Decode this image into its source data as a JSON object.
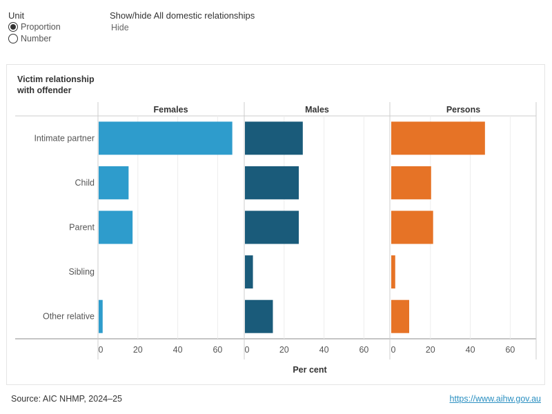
{
  "controls": {
    "unit_title": "Unit",
    "unit_options": [
      "Proportion",
      "Number"
    ],
    "unit_selected": 0,
    "toggle_title": "Show/hide All domestic relationships",
    "toggle_value": "Hide"
  },
  "chart_data": {
    "type": "bar",
    "orientation": "horizontal",
    "row_header": "Victim relationship with offender",
    "categories": [
      "Intimate partner",
      "Child",
      "Parent",
      "Sibling",
      "Other relative"
    ],
    "panels": [
      {
        "name": "Females",
        "color": "#2e9ccc",
        "values": [
          67,
          15,
          17,
          0,
          2
        ]
      },
      {
        "name": "Males",
        "color": "#1a5b7a",
        "values": [
          29,
          27,
          27,
          4,
          14
        ]
      },
      {
        "name": "Persons",
        "color": "#e67326",
        "values": [
          47,
          20,
          21,
          2,
          9
        ]
      }
    ],
    "xlim": [
      0,
      73
    ],
    "xticks": [
      0,
      20,
      40,
      60
    ],
    "xlabel": "Per cent",
    "grid": true
  },
  "footer": {
    "source": "Source: AIC NHMP, 2024–25",
    "link": "https://www.aihw.gov.au"
  }
}
